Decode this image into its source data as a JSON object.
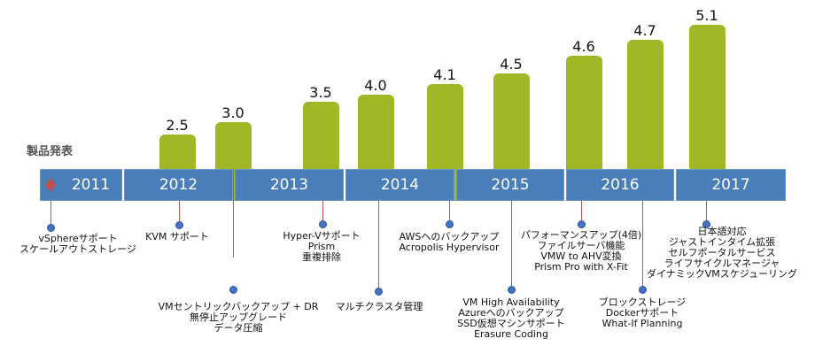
{
  "title": "製品発表",
  "years": [
    "2011",
    "2012",
    "2013",
    "2014",
    "2015",
    "2016",
    "2017"
  ],
  "versions": [
    "2.5",
    "3.0",
    "3.5",
    "4.0",
    "4.1",
    "4.5",
    "4.6",
    "4.7",
    "5.1"
  ],
  "features": [
    {
      "lines": [
        "vSphereサポート",
        "スケールアウトストレージ"
      ]
    },
    {
      "lines": [
        "KVM サポート"
      ]
    },
    {
      "lines": [
        "VMセントリックバックアップ + DR",
        "無停止アップグレード",
        "データ圧縮"
      ]
    },
    {
      "lines": [
        "Hyper-Vサポート",
        "Prism",
        "重複排除"
      ]
    },
    {
      "lines": [
        "マルチクラスタ管理"
      ]
    },
    {
      "lines": [
        "AWSへのバックアップ",
        "Acropolis Hypervisor"
      ]
    },
    {
      "lines": [
        "VM High Availability",
        "Azureへのバックアップ",
        "SSD仮想マシンサポート",
        "Erasure Coding"
      ]
    },
    {
      "lines": [
        "パフォーマンスアップ(4倍)",
        "ファイルサーバ機能",
        "VMW to AHV変換",
        "Prism Pro with X-Fit"
      ]
    },
    {
      "lines": [
        "ブロックストレージ",
        "Dockerサポート",
        "What-If Planning"
      ]
    },
    {
      "lines": [
        "日本語対応",
        "ジャストインタイム拡張",
        "セルフポータルサービス",
        "ライフサイクルマネージャ",
        "ダイナミックVMスケジューリング"
      ]
    }
  ],
  "colors": {
    "timeline": "#4a7ebb",
    "bar": "#a0b726",
    "connector": "#c0504d",
    "dot": "#4472c4",
    "marker": "#c0504d"
  }
}
